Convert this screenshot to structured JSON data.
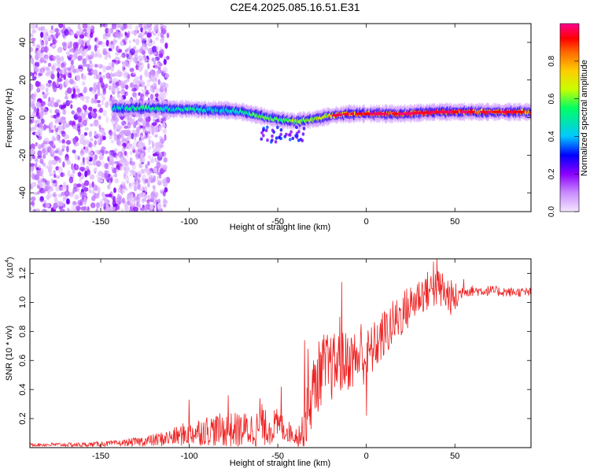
{
  "title": "C2E4.2025.085.16.51.E31",
  "chart_data": [
    {
      "type": "heatmap",
      "xlabel": "Height of straight line (km)",
      "ylabel": "Frequency (Hz)",
      "xlim": [
        -190,
        93
      ],
      "ylim": [
        -50,
        50
      ],
      "xticks": [
        "-150",
        "-100",
        "-50",
        "0",
        "50"
      ],
      "xtick_values": [
        -150,
        -100,
        -50,
        0,
        50
      ],
      "yticks": [
        "-40",
        "-20",
        "0",
        "20",
        "40"
      ],
      "ytick_values": [
        -40,
        -20,
        0,
        20,
        40
      ],
      "colorbar": {
        "label": "Normalized spectral amplitude",
        "range": [
          0,
          1
        ],
        "ticks": [
          "0.0",
          "0.2",
          "0.4",
          "0.6",
          "0.8"
        ],
        "tick_values": [
          0,
          0.2,
          0.4,
          0.6,
          0.8
        ],
        "colors": [
          "#f4e6ff",
          "#c98cff",
          "#8c00ff",
          "#0000ff",
          "#00c8ff",
          "#00ff64",
          "#c8ff00",
          "#ffcc00",
          "#ff6600",
          "#ff0000",
          "#ff0090"
        ]
      },
      "ridge": {
        "x": [
          -143,
          -130,
          -120,
          -110,
          -100,
          -90,
          -80,
          -70,
          -60,
          -50,
          -40,
          -30,
          -20,
          -10,
          0,
          10,
          20,
          30,
          40,
          50,
          60,
          70,
          80,
          93
        ],
        "freq": [
          5,
          5,
          5,
          4.5,
          4.5,
          4,
          4,
          3,
          1,
          -1,
          -2,
          -1,
          1,
          2,
          2,
          2,
          2,
          2.5,
          3,
          3,
          3,
          3,
          3,
          3
        ],
        "amplitude": [
          0.45,
          0.5,
          0.5,
          0.45,
          0.5,
          0.45,
          0.45,
          0.5,
          0.55,
          0.55,
          0.6,
          0.6,
          0.7,
          0.8,
          0.85,
          0.85,
          0.85,
          0.85,
          0.9,
          0.9,
          0.85,
          0.8,
          0.85,
          0.8
        ]
      },
      "grid": false
    },
    {
      "type": "line",
      "xlabel": "Height of straight line (km)",
      "ylabel": "SNR (10 * v/v)",
      "multiplier_label": "(x10",
      "multiplier_exp": "4",
      "xlim": [
        -190,
        93
      ],
      "ylim": [
        0,
        1.3
      ],
      "xticks": [
        "-150",
        "-100",
        "-50",
        "0",
        "50"
      ],
      "xtick_values": [
        -150,
        -100,
        -50,
        0,
        50
      ],
      "yticks": [
        "0.2",
        "0.4",
        "0.6",
        "0.8",
        "1.0",
        "1.2"
      ],
      "ytick_values": [
        0.2,
        0.4,
        0.6,
        0.8,
        1.0,
        1.2
      ],
      "color": "#ee2222",
      "envelope": {
        "x": [
          -190,
          -160,
          -140,
          -130,
          -120,
          -110,
          -100,
          -90,
          -80,
          -70,
          -60,
          -50,
          -45,
          -40,
          -36,
          -33,
          -30,
          -25,
          -20,
          -15,
          -10,
          -5,
          0,
          5,
          10,
          15,
          20,
          25,
          30,
          35,
          40,
          45,
          50,
          55,
          60,
          70,
          80,
          93
        ],
        "y": [
          0.02,
          0.02,
          0.03,
          0.04,
          0.05,
          0.07,
          0.1,
          0.12,
          0.12,
          0.12,
          0.13,
          0.15,
          0.12,
          0.08,
          0.1,
          0.25,
          0.4,
          0.55,
          0.55,
          0.58,
          0.6,
          0.62,
          0.62,
          0.7,
          0.78,
          0.85,
          0.92,
          0.98,
          1.05,
          1.08,
          1.1,
          1.05,
          1.02,
          1.08,
          1.08,
          1.08,
          1.07,
          1.07
        ]
      },
      "noise": {
        "x": [
          -190,
          -140,
          -130,
          -110,
          -100,
          -80,
          -60,
          -50,
          -45,
          -40,
          -36,
          -33,
          -25,
          -15,
          -5,
          5,
          20,
          30,
          40,
          50,
          55,
          93
        ],
        "amp": [
          0.01,
          0.02,
          0.03,
          0.06,
          0.09,
          0.12,
          0.13,
          0.12,
          0.08,
          0.06,
          0.12,
          0.22,
          0.25,
          0.22,
          0.2,
          0.18,
          0.16,
          0.14,
          0.14,
          0.12,
          0.04,
          0.03
        ]
      },
      "spikes": [
        {
          "x": -100,
          "y": 0.33
        },
        {
          "x": -78,
          "y": 0.36
        },
        {
          "x": -60,
          "y": 0.34
        },
        {
          "x": -59,
          "y": 0.3
        },
        {
          "x": -48,
          "y": 0.42
        },
        {
          "x": -35,
          "y": 0.74
        },
        {
          "x": -33,
          "y": 0.68
        },
        {
          "x": -14,
          "y": 1.14
        },
        {
          "x": -15,
          "y": 0.9
        },
        {
          "x": -3,
          "y": 0.85
        },
        {
          "x": 0,
          "y": 0.22
        },
        {
          "x": 38,
          "y": 1.28
        },
        {
          "x": 40,
          "y": 1.3
        },
        {
          "x": 43,
          "y": 1.2
        },
        {
          "x": 46,
          "y": 1.15
        },
        {
          "x": 55,
          "y": 1.16
        }
      ],
      "grid": false
    }
  ]
}
